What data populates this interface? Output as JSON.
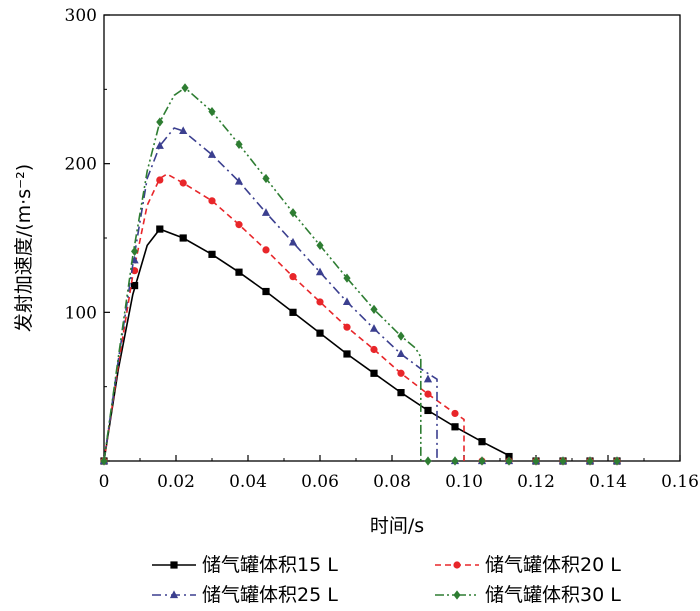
{
  "chart_data": {
    "type": "line",
    "title": "",
    "xlabel": "时间/s",
    "ylabel": "发射加速度/(m·s⁻²)",
    "xlim": [
      0,
      0.16
    ],
    "ylim": [
      0,
      300
    ],
    "xticks": [
      "0",
      "0.02",
      "0.04",
      "0.06",
      "0.08",
      "0.10",
      "0.12",
      "0.14",
      "0.16"
    ],
    "yticks": [
      "100",
      "200",
      "300"
    ],
    "grid": false,
    "legend_position": "bottom",
    "series": [
      {
        "name": "储气罐体积15 L",
        "color": "#000000",
        "dash": "solid",
        "marker": "square",
        "x": [
          0.0,
          0.004,
          0.008,
          0.012,
          0.0155,
          0.022,
          0.03,
          0.0375,
          0.045,
          0.0525,
          0.06,
          0.0675,
          0.075,
          0.0825,
          0.09,
          0.0975,
          0.105,
          0.113,
          0.113
        ],
        "y": [
          0,
          62,
          112,
          145,
          156,
          150,
          139,
          127,
          114,
          100,
          86,
          72,
          59,
          46,
          34,
          23,
          13,
          3,
          0
        ],
        "marker_x": [
          0.0,
          0.0085,
          0.0155,
          0.022,
          0.03,
          0.0375,
          0.045,
          0.0525,
          0.06,
          0.0675,
          0.075,
          0.0825,
          0.09,
          0.0975,
          0.105,
          0.1125,
          0.12,
          0.1275,
          0.135,
          0.1425
        ],
        "marker_y": [
          0,
          118,
          156,
          150,
          139,
          127,
          114,
          100,
          86,
          72,
          59,
          46,
          34,
          23,
          13,
          3,
          0,
          0,
          0,
          0
        ]
      },
      {
        "name": "储气罐体积20 L",
        "color": "#e8262a",
        "dash": "6,4",
        "marker": "circle",
        "x": [
          0.0,
          0.004,
          0.008,
          0.012,
          0.0155,
          0.0175,
          0.022,
          0.03,
          0.0375,
          0.045,
          0.0525,
          0.06,
          0.0675,
          0.075,
          0.0825,
          0.09,
          0.0975,
          0.1,
          0.1
        ],
        "y": [
          0,
          65,
          125,
          172,
          190,
          193,
          187,
          175,
          159,
          142,
          124,
          107,
          90,
          75,
          59,
          45,
          32,
          28,
          0
        ],
        "marker_x": [
          0.0,
          0.0085,
          0.0155,
          0.022,
          0.03,
          0.0375,
          0.045,
          0.0525,
          0.06,
          0.0675,
          0.075,
          0.0825,
          0.09,
          0.0975,
          0.105,
          0.1125,
          0.12,
          0.1275,
          0.135,
          0.1425
        ],
        "marker_y": [
          0,
          128,
          189,
          187,
          175,
          159,
          142,
          124,
          107,
          90,
          75,
          59,
          45,
          32,
          0,
          0,
          0,
          0,
          0,
          0
        ]
      },
      {
        "name": "储气罐体积25 L",
        "color": "#3b3f8f",
        "dash": "9,4,2,4",
        "marker": "triangle",
        "x": [
          0.0,
          0.004,
          0.008,
          0.012,
          0.0155,
          0.0195,
          0.022,
          0.03,
          0.0375,
          0.045,
          0.0525,
          0.06,
          0.0675,
          0.075,
          0.0825,
          0.088,
          0.0925,
          0.0925
        ],
        "y": [
          0,
          68,
          132,
          190,
          212,
          224,
          222,
          206,
          188,
          167,
          147,
          127,
          107,
          89,
          72,
          62,
          55,
          0
        ],
        "marker_x": [
          0.0,
          0.0085,
          0.0155,
          0.022,
          0.03,
          0.0375,
          0.045,
          0.0525,
          0.06,
          0.0675,
          0.075,
          0.0825,
          0.09,
          0.0975,
          0.105,
          0.1125,
          0.12,
          0.1275,
          0.135,
          0.1425
        ],
        "marker_y": [
          0,
          135,
          212,
          222,
          206,
          188,
          167,
          147,
          127,
          107,
          89,
          72,
          55,
          0,
          0,
          0,
          0,
          0,
          0,
          0
        ]
      },
      {
        "name": "储气罐体积30 L",
        "color": "#2e7d32",
        "dash": "9,3,2,3,2,3",
        "marker": "diamond",
        "x": [
          0.0,
          0.004,
          0.008,
          0.012,
          0.0155,
          0.0195,
          0.0225,
          0.03,
          0.0375,
          0.045,
          0.0525,
          0.06,
          0.0675,
          0.075,
          0.0825,
          0.0865,
          0.088,
          0.088
        ],
        "y": [
          0,
          70,
          138,
          195,
          228,
          246,
          251,
          235,
          213,
          190,
          167,
          145,
          123,
          102,
          84,
          76,
          70,
          0
        ],
        "marker_x": [
          0.0,
          0.0085,
          0.0155,
          0.0225,
          0.03,
          0.0375,
          0.045,
          0.0525,
          0.06,
          0.0675,
          0.075,
          0.0825,
          0.09,
          0.0975,
          0.105,
          0.1125,
          0.12,
          0.1275,
          0.135,
          0.1425
        ],
        "marker_y": [
          0,
          141,
          228,
          251,
          235,
          213,
          190,
          167,
          145,
          123,
          102,
          84,
          0,
          0,
          0,
          0,
          0,
          0,
          0,
          0
        ]
      }
    ]
  }
}
